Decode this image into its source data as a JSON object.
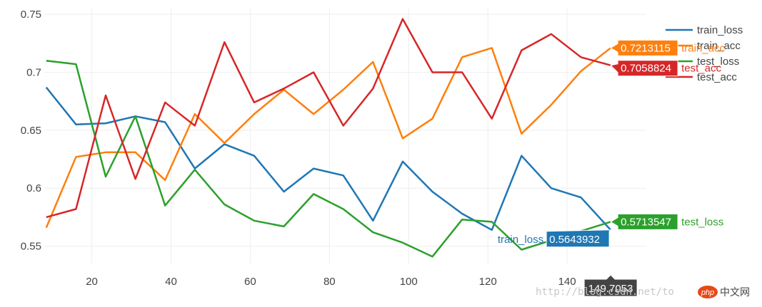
{
  "chart_data": {
    "type": "line",
    "title": "",
    "xlabel": "",
    "ylabel": "",
    "xlim": [
      8,
      160
    ],
    "ylim": [
      0.535,
      0.755
    ],
    "x_ticks": [
      20,
      40,
      60,
      80,
      100,
      120,
      140
    ],
    "x_tick_labels": [
      "20",
      "40",
      "60",
      "80",
      "100",
      "120",
      "140"
    ],
    "y_ticks": [
      0.55,
      0.6,
      0.65,
      0.7,
      0.75
    ],
    "y_tick_labels": [
      "0.55",
      "0.6",
      "0.65",
      "0.7",
      "0.75"
    ],
    "grid": true,
    "legend_position": "top-right",
    "x": [
      8.5,
      16,
      23.5,
      31,
      38.5,
      46,
      53.5,
      61,
      68.5,
      76,
      83.5,
      91,
      98.5,
      106,
      113.5,
      121,
      128.5,
      136,
      143.5,
      151
    ],
    "series": [
      {
        "name": "train_loss",
        "color": "#1f77b4",
        "values": [
          0.687,
          0.655,
          0.656,
          0.662,
          0.657,
          0.617,
          0.638,
          0.628,
          0.597,
          0.617,
          0.611,
          0.572,
          0.623,
          0.597,
          0.578,
          0.564,
          0.628,
          0.6,
          0.592,
          0.564
        ]
      },
      {
        "name": "train_acc",
        "color": "#ff7f0e",
        "values": [
          0.566,
          0.627,
          0.631,
          0.631,
          0.607,
          0.664,
          0.639,
          0.664,
          0.685,
          0.664,
          0.685,
          0.709,
          0.643,
          0.66,
          0.713,
          0.721,
          0.647,
          0.672,
          0.701,
          0.721
        ]
      },
      {
        "name": "test_loss",
        "color": "#2ca02c",
        "values": [
          0.71,
          0.707,
          0.61,
          0.662,
          0.585,
          0.616,
          0.586,
          0.572,
          0.567,
          0.595,
          0.582,
          0.562,
          0.553,
          0.541,
          0.573,
          0.571,
          0.547,
          0.555,
          0.563,
          0.571
        ]
      },
      {
        "name": "test_acc",
        "color": "#d62728",
        "values": [
          0.575,
          0.582,
          0.68,
          0.608,
          0.674,
          0.654,
          0.726,
          0.674,
          0.686,
          0.7,
          0.654,
          0.686,
          0.746,
          0.7,
          0.7,
          0.66,
          0.719,
          0.733,
          0.713,
          0.706
        ]
      }
    ],
    "legend_entries": [
      "train_loss",
      "train_acc",
      "test_loss",
      "test_acc"
    ],
    "hover": {
      "x_label": "149.7053",
      "labels": [
        {
          "series": "train_acc",
          "value": "0.7213115",
          "name": "train_acc"
        },
        {
          "series": "test_acc",
          "value": "0.7058824",
          "name": "test_acc"
        },
        {
          "series": "test_loss",
          "value": "0.5713547",
          "name": "test_loss"
        },
        {
          "series": "train_loss",
          "value": "0.5643932",
          "name": "train_loss"
        }
      ]
    }
  },
  "watermark": "http://blog.csdn.net/to",
  "logo": {
    "badge": "php",
    "text": "中文网"
  }
}
